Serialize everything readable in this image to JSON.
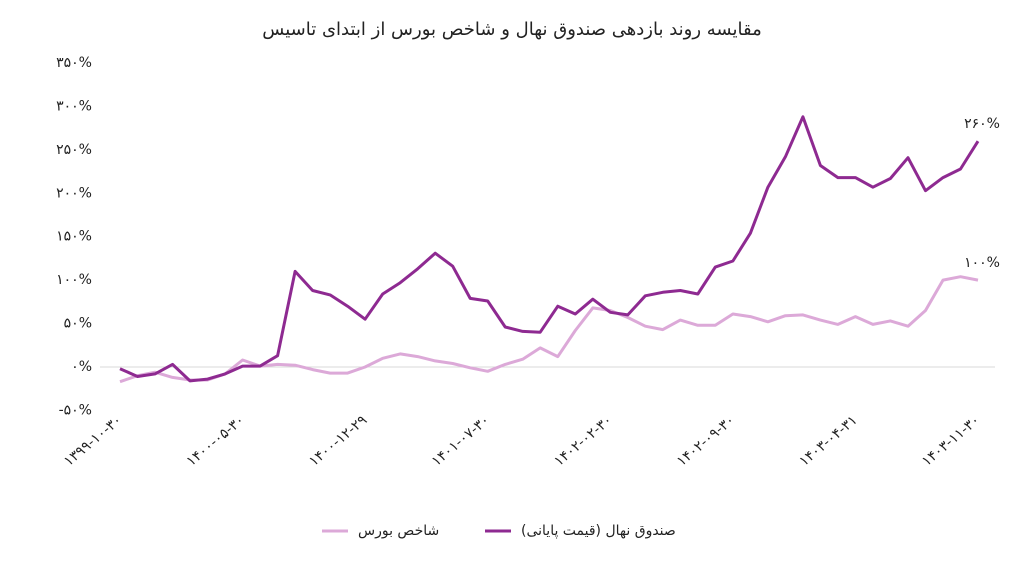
{
  "chart_data": {
    "type": "line",
    "title": "مقایسه روند بازدهی صندوق نهال و شاخص بورس از ابتدای تاسیس",
    "categories": [
      "۱۳۹۹-۱۰-۳۰",
      null,
      null,
      null,
      null,
      null,
      null,
      "۱۴۰۰-۰۵-۳۰",
      null,
      null,
      null,
      null,
      null,
      null,
      "۱۴۰۰-۱۲-۲۹",
      null,
      null,
      null,
      null,
      null,
      null,
      "۱۴۰۱-۰۷-۳۰",
      null,
      null,
      null,
      null,
      null,
      null,
      "۱۴۰۲-۰۲-۳۰",
      null,
      null,
      null,
      null,
      null,
      null,
      "۱۴۰۲-۰۹-۳۰",
      null,
      null,
      null,
      null,
      null,
      null,
      "۱۴۰۳-۰۴-۳۱",
      null,
      null,
      null,
      null,
      null,
      null,
      "۱۴۰۳-۱۱-۳۰"
    ],
    "series": [
      {
        "name": "شاخص بورس",
        "color": "#dca9d8",
        "values": [
          -17,
          -10,
          -6,
          -12,
          -15,
          -15,
          -8,
          8,
          1,
          3,
          2,
          -3,
          -7,
          -7,
          0,
          10,
          15,
          12,
          7,
          4,
          -1,
          -5,
          3,
          9,
          22,
          12,
          42,
          68,
          65,
          57,
          47,
          43,
          54,
          48,
          48,
          61,
          58,
          52,
          59,
          60,
          54,
          49,
          58,
          49,
          53,
          47,
          65,
          100,
          104,
          100
        ],
        "value_labels": [
          null,
          null,
          null,
          null,
          null,
          null,
          null,
          null,
          null,
          null,
          null,
          null,
          null,
          null,
          null,
          null,
          null,
          null,
          null,
          null,
          null,
          null,
          null,
          null,
          null,
          null,
          null,
          null,
          null,
          null,
          null,
          null,
          null,
          null,
          null,
          null,
          null,
          null,
          null,
          null,
          null,
          null,
          null,
          null,
          null,
          null,
          null,
          null,
          null,
          "۱۰۰%"
        ]
      },
      {
        "name": "صندوق نهال (قیمت پایانی)",
        "color": "#8e2a91",
        "values": [
          -2,
          -11,
          -8,
          3,
          -16,
          -14,
          -8,
          1,
          1,
          13,
          110,
          88,
          83,
          70,
          55,
          84,
          97,
          113,
          131,
          116,
          79,
          76,
          46,
          41,
          40,
          70,
          61,
          78,
          63,
          60,
          82,
          86,
          88,
          84,
          115,
          122,
          154,
          207,
          242,
          288,
          232,
          218,
          218,
          207,
          217,
          241,
          203,
          218,
          228,
          260
        ],
        "value_labels": [
          null,
          null,
          null,
          null,
          null,
          null,
          null,
          null,
          null,
          null,
          null,
          null,
          null,
          null,
          null,
          null,
          null,
          null,
          null,
          null,
          null,
          null,
          null,
          null,
          null,
          null,
          null,
          null,
          null,
          null,
          null,
          null,
          null,
          null,
          null,
          null,
          null,
          null,
          null,
          null,
          null,
          null,
          null,
          null,
          null,
          null,
          null,
          null,
          null,
          "۲۶۰%"
        ]
      }
    ],
    "ylim": [
      -50,
      350
    ],
    "yticks": [
      {
        "value": -50,
        "label": "-۵۰%"
      },
      {
        "value": 0,
        "label": "۰%"
      },
      {
        "value": 50,
        "label": "۵۰%"
      },
      {
        "value": 100,
        "label": "۱۰۰%"
      },
      {
        "value": 150,
        "label": "۱۵۰%"
      },
      {
        "value": 200,
        "label": "۲۰۰%"
      },
      {
        "value": 250,
        "label": "۲۵۰%"
      },
      {
        "value": 300,
        "label": "۳۰۰%"
      },
      {
        "value": 350,
        "label": "۳۵۰%"
      }
    ]
  }
}
